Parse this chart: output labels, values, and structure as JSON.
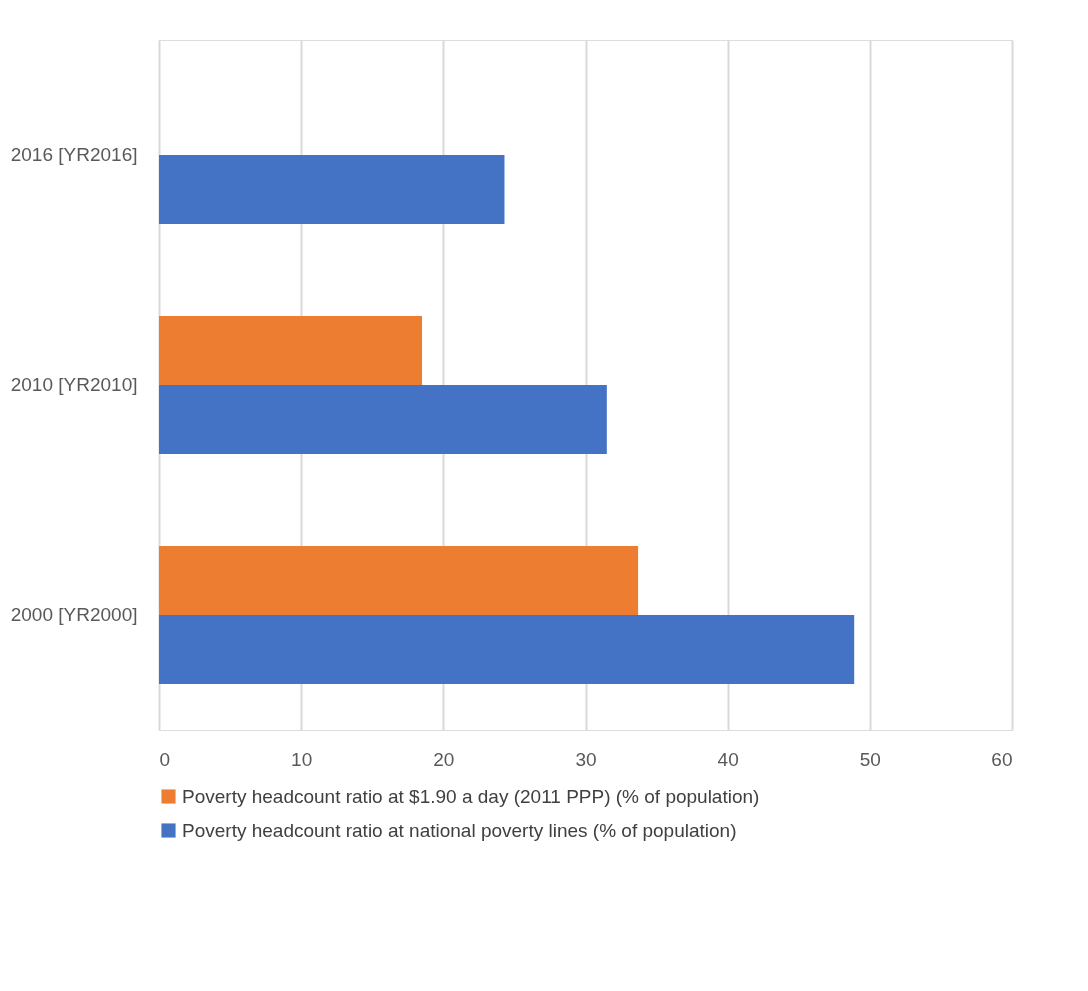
{
  "chart_data": {
    "type": "bar",
    "orientation": "horizontal",
    "categories": [
      "2016 [YR2016]",
      "2010 [YR2010]",
      "2000 [YR2000]"
    ],
    "series": [
      {
        "name": "Poverty headcount ratio at $1.90 a day (2011 PPP) (% of population)",
        "color": "#ed7d31",
        "values": [
          null,
          18.5,
          33.7
        ]
      },
      {
        "name": "Poverty headcount ratio at national poverty lines (% of population)",
        "color": "#4472c4",
        "values": [
          24.3,
          31.5,
          48.9
        ]
      }
    ],
    "xlim": [
      0,
      60
    ],
    "xticks": [
      0,
      10,
      20,
      30,
      40,
      50,
      60
    ],
    "grid": "x",
    "legend": "bottom"
  }
}
